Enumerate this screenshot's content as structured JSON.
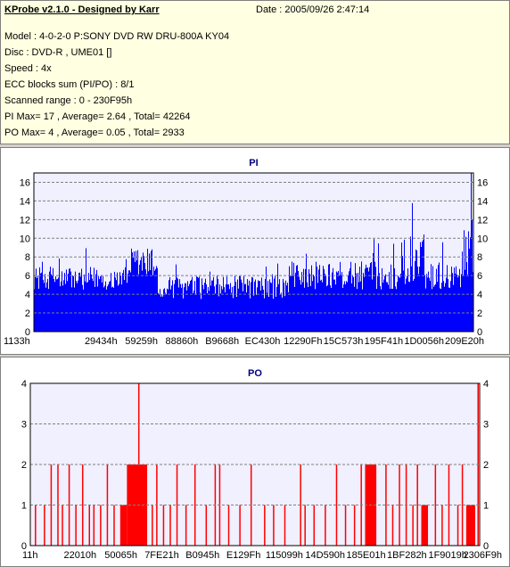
{
  "info": {
    "title": "KProbe v2.1.0 - Designed by Karr",
    "date": "Date : 2005/09/26 2:47:14",
    "model": "Model : 4-0-2-0 P:SONY    DVD RW DRU-800A  KY04",
    "disc": "Disc : DVD-R , UME01 []",
    "speed": "Speed : 4x",
    "ecc": "ECC blocks sum (PI/PO) : 8/1",
    "range": "Scanned range : 0 - 230F95h",
    "pi_stats": "PI Max= 17 , Average= 2.64 , Total= 42264",
    "po_stats": "PO Max= 4 , Average= 0.05 , Total= 2933"
  },
  "colors": {
    "info_bg": "#ffffe1",
    "plot_bg": "#f0f0ff",
    "pi_fill": "#0000ff",
    "po_fill": "#ff0000",
    "title_color": "#000080"
  },
  "chart_data": [
    {
      "type": "area",
      "title": "PI",
      "ylim": [
        0,
        17
      ],
      "yticks": [
        "0",
        "2",
        "4",
        "6",
        "8",
        "10",
        "12",
        "14",
        "16"
      ],
      "xticks": [
        "1133h",
        "29434h",
        "59259h",
        "88860h",
        "B9668h",
        "EC430h",
        "12290Fh",
        "15C573h",
        "195F41h",
        "1D0056h",
        "209E20h"
      ],
      "grid": true,
      "segments": [
        {
          "from": 0.0,
          "to": 0.22,
          "base": 4.5,
          "peak": 9
        },
        {
          "from": 0.22,
          "to": 0.28,
          "base": 5.5,
          "peak": 12
        },
        {
          "from": 0.28,
          "to": 0.3,
          "base": 3.5,
          "peak": 6
        },
        {
          "from": 0.3,
          "to": 0.58,
          "base": 3.5,
          "peak": 8
        },
        {
          "from": 0.58,
          "to": 0.85,
          "base": 4.5,
          "peak": 10
        },
        {
          "from": 0.85,
          "to": 0.89,
          "base": 5,
          "peak": 15
        },
        {
          "from": 0.89,
          "to": 0.97,
          "base": 4.5,
          "peak": 10
        },
        {
          "from": 0.97,
          "to": 1.0,
          "base": 6,
          "peak": 17
        }
      ]
    },
    {
      "type": "bar",
      "title": "PO",
      "ylim": [
        0,
        4
      ],
      "yticks": [
        "0",
        "1",
        "2",
        "3",
        "4"
      ],
      "xticks": [
        "11h",
        "22010h",
        "50065h",
        "7FE21h",
        "B0945h",
        "E129Fh",
        "115099h",
        "14D590h",
        "185E01h",
        "1BF282h",
        "1F9019h",
        "2306F9h"
      ],
      "grid": true,
      "blocks": [
        {
          "from": 0.215,
          "to": 0.26,
          "value": 2
        },
        {
          "from": 0.2,
          "to": 0.215,
          "value": 1
        },
        {
          "from": 0.745,
          "to": 0.77,
          "value": 2
        },
        {
          "from": 0.87,
          "to": 0.885,
          "value": 1
        },
        {
          "from": 0.97,
          "to": 0.99,
          "value": 1
        }
      ],
      "spikes": [
        {
          "x": 0.01,
          "value": 1
        },
        {
          "x": 0.03,
          "value": 1
        },
        {
          "x": 0.045,
          "value": 2
        },
        {
          "x": 0.06,
          "value": 2
        },
        {
          "x": 0.07,
          "value": 1
        },
        {
          "x": 0.085,
          "value": 2
        },
        {
          "x": 0.1,
          "value": 1
        },
        {
          "x": 0.115,
          "value": 2
        },
        {
          "x": 0.13,
          "value": 1
        },
        {
          "x": 0.14,
          "value": 1
        },
        {
          "x": 0.155,
          "value": 1
        },
        {
          "x": 0.17,
          "value": 2
        },
        {
          "x": 0.185,
          "value": 1
        },
        {
          "x": 0.24,
          "value": 4
        },
        {
          "x": 0.27,
          "value": 1
        },
        {
          "x": 0.28,
          "value": 2
        },
        {
          "x": 0.295,
          "value": 1
        },
        {
          "x": 0.31,
          "value": 1
        },
        {
          "x": 0.325,
          "value": 2
        },
        {
          "x": 0.345,
          "value": 1
        },
        {
          "x": 0.365,
          "value": 2
        },
        {
          "x": 0.39,
          "value": 1
        },
        {
          "x": 0.41,
          "value": 2
        },
        {
          "x": 0.42,
          "value": 2
        },
        {
          "x": 0.44,
          "value": 1
        },
        {
          "x": 0.465,
          "value": 1
        },
        {
          "x": 0.49,
          "value": 2
        },
        {
          "x": 0.52,
          "value": 1
        },
        {
          "x": 0.54,
          "value": 1
        },
        {
          "x": 0.565,
          "value": 1
        },
        {
          "x": 0.6,
          "value": 2
        },
        {
          "x": 0.61,
          "value": 1
        },
        {
          "x": 0.63,
          "value": 1
        },
        {
          "x": 0.655,
          "value": 1
        },
        {
          "x": 0.68,
          "value": 2
        },
        {
          "x": 0.7,
          "value": 1
        },
        {
          "x": 0.72,
          "value": 1
        },
        {
          "x": 0.735,
          "value": 2
        },
        {
          "x": 0.79,
          "value": 2
        },
        {
          "x": 0.805,
          "value": 1
        },
        {
          "x": 0.82,
          "value": 2
        },
        {
          "x": 0.835,
          "value": 2
        },
        {
          "x": 0.85,
          "value": 1
        },
        {
          "x": 0.86,
          "value": 2
        },
        {
          "x": 0.9,
          "value": 2
        },
        {
          "x": 0.915,
          "value": 1
        },
        {
          "x": 0.93,
          "value": 2
        },
        {
          "x": 0.95,
          "value": 1
        },
        {
          "x": 0.96,
          "value": 2
        },
        {
          "x": 0.995,
          "value": 4
        }
      ]
    }
  ]
}
